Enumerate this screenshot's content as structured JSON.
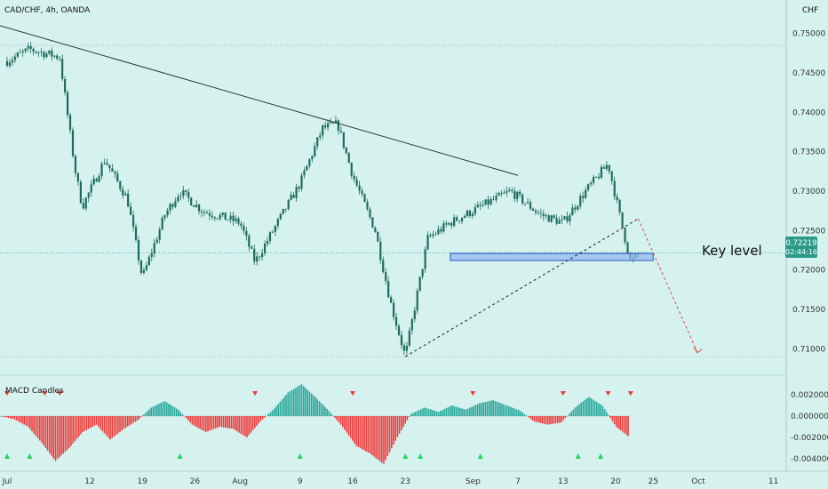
{
  "header": {
    "symbol": "CAD/CHF, 4h, OANDA",
    "currency": "CHF"
  },
  "chart_data": {
    "type": "candlestick",
    "price_axis": {
      "ticks": [
        "0.75000",
        "0.74500",
        "0.74000",
        "0.73500",
        "0.73000",
        "0.72500",
        "0.72000",
        "0.71500",
        "0.71000"
      ],
      "range": [
        0.708,
        0.752
      ]
    },
    "time_axis": {
      "ticks": [
        "Jul",
        "12",
        "19",
        "26",
        "Aug",
        "9",
        "16",
        "23",
        "Sep",
        "7",
        "13",
        "20",
        "25",
        "Oct",
        "11"
      ]
    },
    "price_path": [
      [
        "Jul",
        "0.7465"
      ],
      [
        "Jul +3d",
        "0.7480"
      ],
      [
        "Jul 8",
        "0.7470"
      ],
      [
        "Jul 10",
        "0.7330"
      ],
      [
        "Jul 11",
        "0.7280"
      ],
      [
        "Jul 14",
        "0.7340"
      ],
      [
        "Jul 17",
        "0.7290"
      ],
      [
        "Jul 19",
        "0.7190"
      ],
      [
        "Jul 22",
        "0.7270"
      ],
      [
        "Jul 24",
        "0.7300"
      ],
      [
        "Jul 27",
        "0.7275"
      ],
      [
        "Aug 1",
        "0.7260"
      ],
      [
        "Aug 3",
        "0.7210"
      ],
      [
        "Aug 6",
        "0.7260"
      ],
      [
        "Aug 9",
        "0.7310"
      ],
      [
        "Aug 12",
        "0.7380"
      ],
      [
        "Aug 14",
        "0.7385"
      ],
      [
        "Aug 16",
        "0.7320"
      ],
      [
        "Aug 19",
        "0.7250"
      ],
      [
        "Aug 21",
        "0.7160"
      ],
      [
        "Aug 23",
        "0.7090"
      ],
      [
        "Aug 26",
        "0.7240"
      ],
      [
        "Aug 29",
        "0.7260"
      ],
      [
        "Sep 2",
        "0.7280"
      ],
      [
        "Sep 6",
        "0.7300"
      ],
      [
        "Sep 10",
        "0.7270"
      ],
      [
        "Sep 13",
        "0.7260"
      ],
      [
        "Sep 16",
        "0.7300"
      ],
      [
        "Sep 19",
        "0.7335"
      ],
      [
        "Sep 21",
        "0.7250"
      ],
      [
        "Sep 22",
        "0.7210"
      ],
      [
        "Sep 23",
        "0.7219"
      ]
    ],
    "current_price": {
      "value": "0.72219",
      "countdown": "02:44:16"
    },
    "key_level": {
      "label": "Key level",
      "from": 0.7212,
      "to": 0.7221
    },
    "trendline": {
      "from": [
        "Jul",
        "0.7510"
      ],
      "to": [
        "Sep 7",
        "0.7320"
      ]
    },
    "support_line": {
      "from": [
        "Aug 23",
        "0.7090"
      ],
      "to": [
        "Sep 23",
        "0.7265"
      ]
    },
    "projection": {
      "from": [
        "Sep 23",
        "0.7265"
      ],
      "to": [
        "Sep 29",
        "0.7095"
      ]
    },
    "dotted_levels": [
      "0.74850",
      "0.70900"
    ],
    "indicator": {
      "name": "MACD Candles",
      "axis": {
        "ticks": [
          "0.002000",
          "0.000000",
          "-0.002000",
          "-0.004000"
        ],
        "range": [
          -0.0045,
          0.003
        ]
      },
      "histogram": [
        0,
        -0.0003,
        -0.001,
        -0.0025,
        -0.0042,
        -0.003,
        -0.0015,
        -0.0008,
        -0.0022,
        -0.0012,
        -0.0004,
        0.0008,
        0.0014,
        0.0006,
        -0.0008,
        -0.0015,
        -0.001,
        -0.0012,
        -0.002,
        -0.0005,
        0.0007,
        0.0022,
        0.003,
        0.0018,
        0.0005,
        -0.001,
        -0.0028,
        -0.0035,
        -0.0045,
        -0.002,
        0.0002,
        0.0008,
        0.0004,
        0.001,
        0.0006,
        0.0012,
        0.0015,
        0.001,
        0.0005,
        -0.0005,
        -0.0008,
        -0.0006,
        0.0008,
        0.0018,
        0.001,
        -0.001,
        -0.002
      ],
      "sell_signals": [
        "Jul",
        "Jul 6",
        "Jul 8",
        "Aug 3",
        "Aug 16",
        "Sep 1",
        "Sep 13",
        "Sep 19",
        "Sep 22"
      ],
      "buy_signals": [
        "Jul 1",
        "Jul 4",
        "Jul 24",
        "Aug 9",
        "Aug 23",
        "Aug 25",
        "Sep 2",
        "Sep 15",
        "Sep 18"
      ]
    },
    "colors": {
      "up": "#26a69a",
      "down": "#ef5350",
      "candle": "#1e6b5c",
      "price_badge": "#2a9a87",
      "key_zone": "#8fb6f2",
      "key_zone_border": "#2b55c0",
      "signal_up": "#1fd65c",
      "signal_down": "#e83a3a"
    }
  }
}
